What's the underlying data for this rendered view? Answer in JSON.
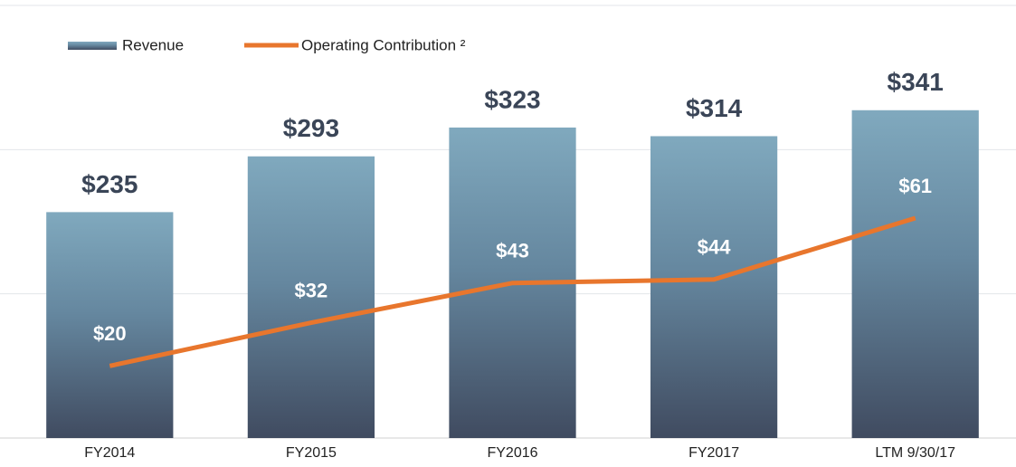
{
  "chart_data": {
    "type": "bar_line",
    "categories": [
      "FY2014",
      "FY2015",
      "FY2016",
      "FY2017",
      "LTM 9/30/17"
    ],
    "series": [
      {
        "name": "Revenue",
        "type": "bar",
        "color": "#7fa7bc",
        "values": [
          235,
          293,
          323,
          314,
          341
        ],
        "value_labels": [
          "$235",
          "$293",
          "$323",
          "$314",
          "$341"
        ]
      },
      {
        "name": "Operating Contribution ²",
        "type": "line",
        "axis": "y2",
        "color": "#e8762d",
        "values": [
          20,
          32,
          43,
          44,
          61
        ],
        "value_labels": [
          "$20",
          "$32",
          "$43",
          "$44",
          "$61"
        ]
      }
    ],
    "ylim": [
      0,
      450
    ],
    "yticks": [
      0,
      150,
      300,
      450
    ],
    "y2lim": [
      0,
      120
    ],
    "grid": true,
    "legend": "top-left"
  }
}
